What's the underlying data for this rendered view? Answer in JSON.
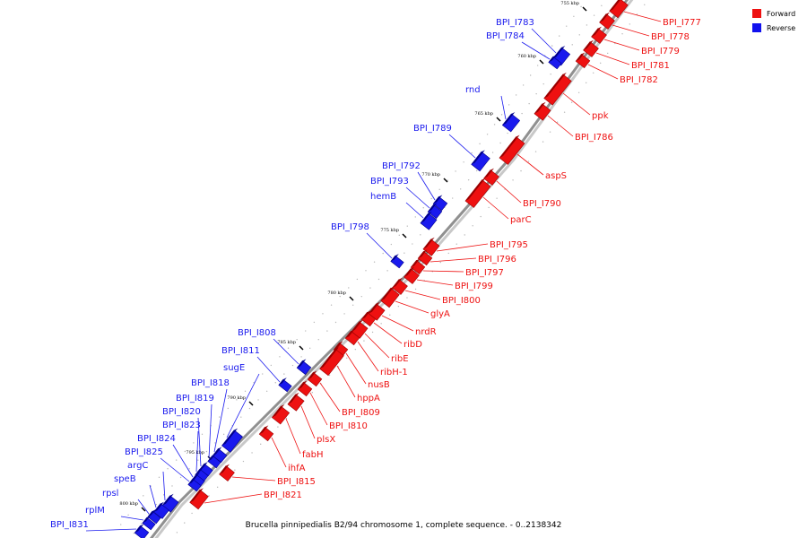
{
  "caption": "Brucella pinnipedialis B2/94 chromosome 1, complete sequence. - 0..2138342",
  "legend": {
    "forward": {
      "label": "Forward",
      "color": "#ee1111"
    },
    "reverse": {
      "label": "Reverse",
      "color": "#1111ee"
    }
  },
  "colors": {
    "forward": "#ee1111",
    "forward_dark": "#9a0000",
    "reverse": "#1a1aee",
    "reverse_dark": "#00008a",
    "backbone": "#909090"
  },
  "ticks": [
    "755 kbp",
    "760 kbp",
    "765 kbp",
    "770 kbp",
    "775 kbp",
    "780 kbp",
    "785 kbp",
    "790 kbp",
    "795 kbp",
    "800 kbp"
  ],
  "forward_genes": [
    "BPI_I777",
    "BPI_I778",
    "BPI_I779",
    "BPI_I781",
    "BPI_I782",
    "ppk",
    "BPI_I786",
    "aspS",
    "BPI_I790",
    "parC",
    "BPI_I795",
    "BPI_I796",
    "BPI_I797",
    "BPI_I799",
    "BPI_I800",
    "glyA",
    "nrdR",
    "ribD",
    "ribE",
    "ribH-1",
    "nusB",
    "hppA",
    "BPI_I809",
    "BPI_I810",
    "plsX",
    "fabH",
    "ihfA",
    "BPI_I815",
    "BPI_I821"
  ],
  "reverse_genes": [
    "BPI_I783",
    "BPI_I784",
    "rnd",
    "BPI_I789",
    "BPI_I792",
    "BPI_I793",
    "hemB",
    "BPI_I798",
    "BPI_I808",
    "BPI_I811",
    "sugE",
    "BPI_I818",
    "BPI_I819",
    "BPI_I820",
    "BPI_I823",
    "BPI_I824",
    "BPI_I825",
    "argC",
    "speB",
    "rpsl",
    "rplM",
    "BPI_I831"
  ]
}
